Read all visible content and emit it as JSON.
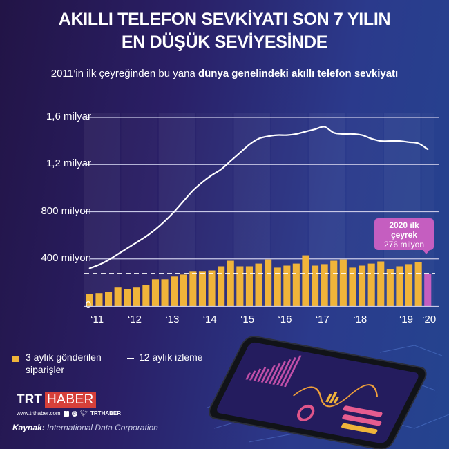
{
  "header": {
    "title_line1": "AKILLI TELEFON SEVKİYATI SON 7 YILIN",
    "title_line2": "EN DÜŞÜK SEVİYESİNDE",
    "subtitle_regular": "2011’in ilk çeyreğinden bu yana ",
    "subtitle_bold": "dünya genelindeki akıllı telefon sevkiyatı"
  },
  "colors": {
    "bar": "#f0b43a",
    "highlight_bar": "#c55ec0",
    "line": "#ffffff",
    "grid": "#c8c8e6",
    "logo_red": "#d6403a"
  },
  "callout": {
    "line1": "2020 ilk",
    "line2": "çeyrek",
    "line3": "276 milyon"
  },
  "legend": {
    "bars_label": "3 aylık gönderilen siparişler",
    "line_label": "12 aylık izleme"
  },
  "footer": {
    "logo_left": "TRT",
    "logo_right": "HABER",
    "website": "www.trthaber.com",
    "social_handle": "TRTHABER",
    "source_label": "Kaynak:",
    "source_value": "International Data Corporation"
  },
  "chart_data": {
    "type": "bar",
    "title": "AKILLI TELEFON SEVKİYATI SON 7 YILIN EN DÜŞÜK SEVİYESİNDE",
    "subtitle": "2011’in ilk çeyreğinden bu yana dünya genelindeki akıllı telefon sevkiyatı",
    "xlabel": "",
    "ylabel": "",
    "unit": "milyon",
    "ylim": [
      0,
      1600
    ],
    "yticks": [
      0,
      400,
      800,
      1200,
      1600
    ],
    "ytick_labels": [
      "0",
      "400 milyon",
      "800 milyon",
      "1,2 milyar",
      "1,6 milyar"
    ],
    "xtick_labels": [
      "‘11",
      "‘12",
      "‘13",
      "‘14",
      "‘15",
      "‘16",
      "‘17",
      "‘18",
      "‘19",
      "‘20"
    ],
    "grid": true,
    "legend_position": "bottom-left",
    "reference_line": {
      "value": 276,
      "style": "dashed"
    },
    "categories": [
      "2011Q1",
      "2011Q2",
      "2011Q3",
      "2011Q4",
      "2012Q1",
      "2012Q2",
      "2012Q3",
      "2012Q4",
      "2013Q1",
      "2013Q2",
      "2013Q3",
      "2013Q4",
      "2014Q1",
      "2014Q2",
      "2014Q3",
      "2014Q4",
      "2015Q1",
      "2015Q2",
      "2015Q3",
      "2015Q4",
      "2016Q1",
      "2016Q2",
      "2016Q3",
      "2016Q4",
      "2017Q1",
      "2017Q2",
      "2017Q3",
      "2017Q4",
      "2018Q1",
      "2018Q2",
      "2018Q3",
      "2018Q4",
      "2019Q1",
      "2019Q2",
      "2019Q3",
      "2019Q4",
      "2020Q1"
    ],
    "series": [
      {
        "name": "3 aylık gönderilen siparişler",
        "type": "bar",
        "values": [
          100,
          110,
          122,
          157,
          145,
          157,
          180,
          227,
          227,
          250,
          267,
          291,
          291,
          302,
          337,
          384,
          337,
          337,
          360,
          395,
          326,
          343,
          360,
          430,
          343,
          355,
          384,
          395,
          326,
          343,
          360,
          378,
          314,
          337,
          355,
          372,
          276
        ]
      },
      {
        "name": "12 aylık izleme",
        "type": "line",
        "values": [
          320,
          350,
          390,
          440,
          490,
          540,
          590,
          650,
          720,
          800,
          890,
          980,
          1050,
          1110,
          1160,
          1230,
          1300,
          1370,
          1420,
          1440,
          1450,
          1450,
          1460,
          1480,
          1500,
          1520,
          1470,
          1460,
          1460,
          1450,
          1420,
          1400,
          1400,
          1400,
          1390,
          1380,
          1330
        ]
      }
    ],
    "annotations": [
      {
        "target": "2020Q1",
        "text": "2020 ilk çeyrek 276 milyon"
      }
    ]
  }
}
